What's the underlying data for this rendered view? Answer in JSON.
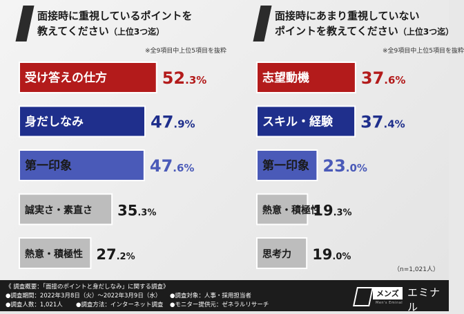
{
  "left": {
    "title": "面接時に重視しているポイントを\n教えてください",
    "title_paren": "（上位3つ迄）",
    "note": "※全9項目中上位5項目を抜粋"
  },
  "right": {
    "title": "面接時にあまり重視していない\nポイントを教えてください",
    "title_paren": "（上位3つ迄）",
    "note": "※全9項目中上位5項目を抜粋"
  },
  "sample_size": "（n=1,021人）",
  "footer": {
    "overview": "《 調査概要：「面接のポイントと身だしなみ」に関する調査》",
    "period": "●調査期間：2022年3月8日（火）〜2022年3月9日（水）",
    "count": "●調査人数：1,021人",
    "method": "●調査方法：インターネット調査",
    "target": "●調査対象：人事・採用担当者",
    "provider": "●モニター提供元：ゼネラルリサーチ"
  },
  "logo": {
    "mens": "メンズ",
    "eminal": "エミナル",
    "sub": "Men's Eminal"
  },
  "chart_data": [
    {
      "type": "bar",
      "title": "面接時に重視しているポイントを教えてください（上位3つ迄）",
      "categories": [
        "受け答えの仕方",
        "身だしなみ",
        "第一印象",
        "誠実さ・素直さ",
        "熱意・積極性"
      ],
      "values": [
        52.3,
        47.9,
        47.6,
        35.3,
        27.2
      ],
      "unit": "%",
      "colors": [
        "#b31b1b",
        "#1f2f8c",
        "#4a5ab8",
        "#bdbdbd",
        "#bdbdbd"
      ],
      "label_colors": [
        "#ffffff",
        "#ffffff",
        "#1a1a1a",
        "#1a1a1a",
        "#1a1a1a"
      ],
      "value_colors": [
        "#b31b1b",
        "#1f2f8c",
        "#4a5ab8",
        "#1a1a1a",
        "#1a1a1a"
      ]
    },
    {
      "type": "bar",
      "title": "面接時にあまり重視していないポイントを教えてください（上位3つ迄）",
      "categories": [
        "志望動機",
        "スキル・経験",
        "第一印象",
        "熱意・積極性",
        "思考力"
      ],
      "values": [
        37.6,
        37.4,
        23.0,
        19.3,
        19.0
      ],
      "unit": "%",
      "colors": [
        "#b31b1b",
        "#1f2f8c",
        "#4a5ab8",
        "#bdbdbd",
        "#bdbdbd"
      ],
      "label_colors": [
        "#ffffff",
        "#ffffff",
        "#1a1a1a",
        "#1a1a1a",
        "#1a1a1a"
      ],
      "value_colors": [
        "#b31b1b",
        "#1f2f8c",
        "#4a5ab8",
        "#1a1a1a",
        "#1a1a1a"
      ]
    }
  ]
}
